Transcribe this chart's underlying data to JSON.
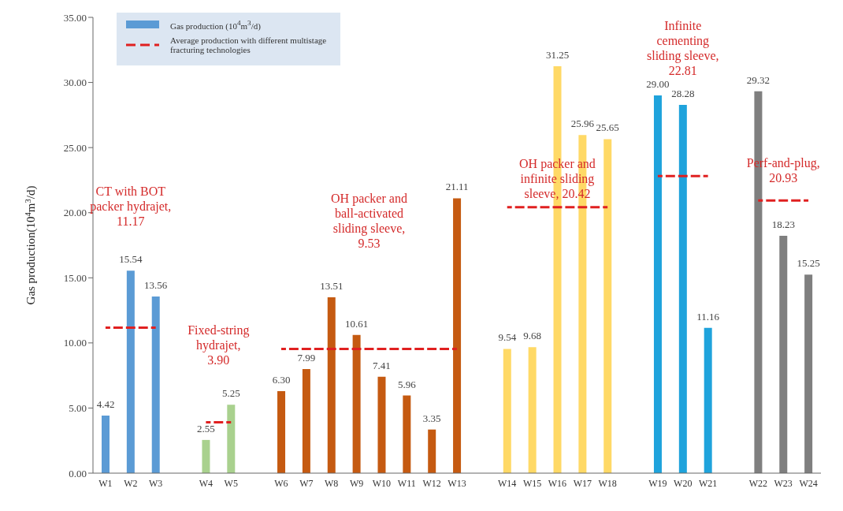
{
  "chart_data": {
    "type": "bar",
    "ylabel": "Gas production(10$^{4}$m$^{3}$/d)",
    "categories": [
      "W1",
      "W2",
      "W3",
      null,
      "W4",
      "W5",
      null,
      "W6",
      "W7",
      "W8",
      "W9",
      "W10",
      "W11",
      "W12",
      "W13",
      null,
      "W14",
      "W15",
      "W16",
      "W17",
      "W18",
      null,
      "W19",
      "W20",
      "W21",
      null,
      "W22",
      "W23",
      "W24"
    ],
    "series": [
      {
        "name": "Gas production (10$^{4}$m$^{3}$/d)",
        "color": "#5b9bd5",
        "values": [
          4.42,
          15.54,
          13.56,
          null,
          2.55,
          5.25,
          null,
          6.3,
          7.99,
          13.51,
          10.61,
          7.41,
          5.96,
          3.35,
          21.11,
          null,
          9.54,
          9.68,
          31.25,
          25.96,
          25.65,
          null,
          29.0,
          28.28,
          11.16,
          null,
          29.32,
          18.23,
          15.25
        ],
        "colors": [
          "#5b9bd5",
          "#5b9bd5",
          "#5b9bd5",
          "#5b9bd5",
          "#a9d18e",
          "#a9d18e",
          "#a9d18e",
          "#c55a11",
          "#c55a11",
          "#c55a11",
          "#c55a11",
          "#c55a11",
          "#c55a11",
          "#c55a11",
          "#c55a11",
          "#c55a11",
          "#ffd966",
          "#ffd966",
          "#ffd966",
          "#ffd966",
          "#ffd966",
          "#ffd966",
          "#1fa3dc",
          "#1fa3dc",
          "#1fa3dc",
          "#1fa3dc",
          "#7f7f7f",
          "#7f7f7f",
          "#7f7f7f"
        ],
        "value_labels": [
          "4.42",
          "15.54",
          "13.56",
          null,
          "2.55",
          "5.25",
          null,
          "6.30",
          "7.99",
          "13.51",
          "10.61",
          "7.41",
          "5.96",
          "3.35",
          "21.11",
          null,
          "9.54",
          "9.68",
          "31.25",
          "25.96",
          "25.65",
          null,
          "29.00",
          "28.28",
          "11.16",
          null,
          "29.32",
          "18.23",
          "15.25"
        ]
      },
      {
        "name": "Average production with different multistage fracturing technologies",
        "type": "line",
        "color": "#e02020",
        "line_style": "dashed",
        "values": [
          11.17,
          11.17,
          11.17,
          null,
          3.9,
          3.9,
          null,
          9.53,
          9.53,
          9.53,
          9.53,
          9.53,
          9.53,
          9.53,
          9.53,
          null,
          20.42,
          20.42,
          20.42,
          20.42,
          20.42,
          null,
          22.81,
          22.81,
          22.81,
          null,
          20.93,
          20.93,
          20.93
        ]
      }
    ],
    "ylim": [
      0,
      35
    ],
    "yticks": [
      {
        "value": 0,
        "label": "0.00"
      },
      {
        "value": 5,
        "label": "5.00"
      },
      {
        "value": 10,
        "label": "10.00"
      },
      {
        "value": 15,
        "label": "15.00"
      },
      {
        "value": 20,
        "label": "20.00"
      },
      {
        "value": 25,
        "label": "25.00"
      },
      {
        "value": 30,
        "label": "30.00"
      },
      {
        "value": 35,
        "label": "35.00"
      }
    ],
    "grid": false,
    "legend": "top left",
    "annotations": [
      "CT with BOT packer hydrajet, 11.17",
      "Fixed-string hydrajet, 3.90",
      "OH packer and ball-activated sliding sleeve, 9.53",
      "OH packer and infinite sliding sleeve, 20.42",
      "Infinite cementing sliding sleeve, 22.81",
      "Perf-and-plug, 20.93"
    ]
  }
}
